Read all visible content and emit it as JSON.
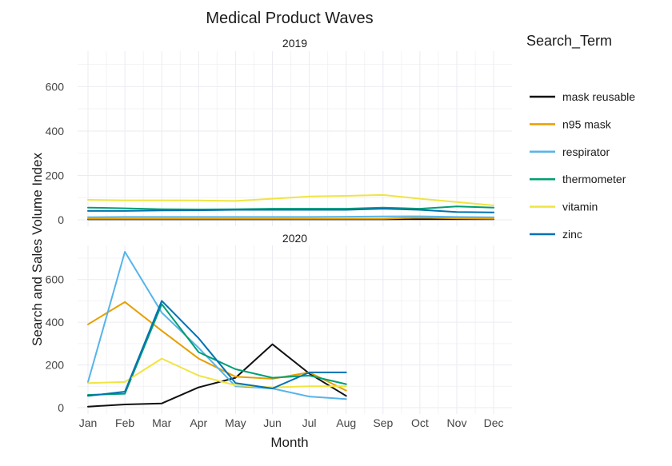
{
  "chart_data": {
    "type": "line",
    "title": "Medical Product Waves",
    "xlabel": "Month",
    "ylabel": "Search and Sales Volume Index",
    "categories": [
      "Jan",
      "Feb",
      "Mar",
      "Apr",
      "May",
      "Jun",
      "Jul",
      "Aug",
      "Sep",
      "Oct",
      "Nov",
      "Dec"
    ],
    "ylim": [
      0,
      760
    ],
    "yticks": [
      0,
      200,
      400,
      600
    ],
    "grid": true,
    "legend": {
      "title": "Search_Term",
      "position": "right"
    },
    "panels": [
      {
        "label": "2019",
        "series": [
          {
            "name": "mask reusable",
            "color": "#111111",
            "values": [
              2,
              2,
              2,
              2,
              2,
              2,
              2,
              2,
              2,
              3,
              3,
              3
            ]
          },
          {
            "name": "n95 mask",
            "color": "#e69f00",
            "values": [
              5,
              5,
              5,
              5,
              5,
              5,
              5,
              5,
              5,
              10,
              7,
              5
            ]
          },
          {
            "name": "respirator",
            "color": "#56b4e9",
            "values": [
              12,
              13,
              13,
              13,
              13,
              13,
              13,
              14,
              15,
              16,
              13,
              11
            ]
          },
          {
            "name": "thermometer",
            "color": "#009e73",
            "values": [
              55,
              52,
              48,
              47,
              48,
              50,
              50,
              50,
              55,
              50,
              60,
              55
            ]
          },
          {
            "name": "vitamin",
            "color": "#f0e442",
            "values": [
              90,
              88,
              88,
              87,
              85,
              95,
              105,
              108,
              112,
              95,
              80,
              65
            ]
          },
          {
            "name": "zinc",
            "color": "#0072b2",
            "values": [
              40,
              40,
              42,
              43,
              45,
              45,
              45,
              45,
              50,
              45,
              35,
              33
            ]
          }
        ]
      },
      {
        "label": "2020",
        "series": [
          {
            "name": "mask reusable",
            "color": "#111111",
            "values": [
              5,
              15,
              20,
              95,
              140,
              297,
              160,
              55,
              null,
              null,
              null,
              null
            ]
          },
          {
            "name": "n95 mask",
            "color": "#e69f00",
            "values": [
              390,
              495,
              360,
              230,
              145,
              135,
              165,
              80,
              null,
              null,
              null,
              null
            ]
          },
          {
            "name": "respirator",
            "color": "#56b4e9",
            "values": [
              120,
              730,
              445,
              280,
              100,
              90,
              52,
              40,
              null,
              null,
              null,
              null
            ]
          },
          {
            "name": "thermometer",
            "color": "#009e73",
            "values": [
              60,
              65,
              485,
              260,
              180,
              140,
              150,
              110,
              null,
              null,
              null,
              null
            ]
          },
          {
            "name": "vitamin",
            "color": "#f0e442",
            "values": [
              115,
              120,
              230,
              150,
              105,
              95,
              100,
              100,
              null,
              null,
              null,
              null
            ]
          },
          {
            "name": "zinc",
            "color": "#0072b2",
            "values": [
              55,
              75,
              500,
              325,
              115,
              90,
              165,
              165,
              null,
              null,
              null,
              null
            ]
          }
        ]
      }
    ]
  }
}
